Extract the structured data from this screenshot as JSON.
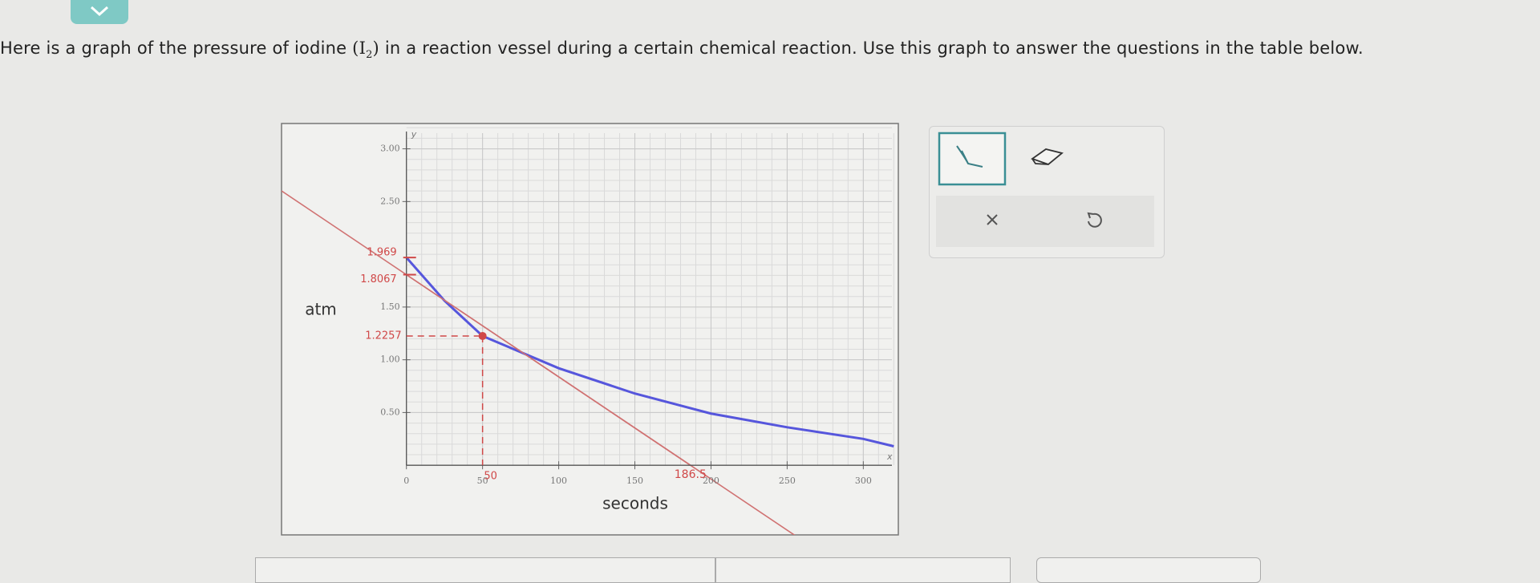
{
  "prompt": {
    "before": "Here is a graph of the pressure of iodine",
    "formula": "I",
    "subscript": "2",
    "after": "in a reaction vessel during a certain chemical reaction. Use this graph to answer the questions in the table below."
  },
  "chart_data": {
    "type": "line",
    "x_label": "seconds",
    "y_label": "atm",
    "x_axis_letter": "x",
    "y_axis_letter": "y",
    "xlim": [
      -82,
      323
    ],
    "ylim": [
      -0.66,
      3.24
    ],
    "xticks": [
      0,
      50,
      100,
      150,
      200,
      250,
      300
    ],
    "yticks": [
      {
        "value": 0.5,
        "label": "0.50"
      },
      {
        "value": 1,
        "label": "1.00"
      },
      {
        "value": 1.5,
        "label": "1.50"
      },
      {
        "value": 2.5,
        "label": "2.50"
      },
      {
        "value": 3,
        "label": "3.00"
      }
    ],
    "grid": true,
    "series": [
      {
        "color": "#5656dc",
        "x": [
          0,
          25,
          50,
          100,
          150,
          200,
          250,
          300,
          320
        ],
        "values": [
          1.969,
          1.56,
          1.2257,
          0.92,
          0.68,
          0.49,
          0.36,
          0.25,
          0.18
        ]
      },
      {
        "color": "#d07272",
        "x": [
          0,
          186.5
        ],
        "values": [
          1.8067,
          0
        ]
      }
    ],
    "annotations": {
      "y_values": [
        1.969,
        1.8067
      ],
      "point": {
        "x": 50,
        "y": 1.2257
      },
      "x_intercept": 186.5,
      "color": "#d04848"
    }
  }
}
